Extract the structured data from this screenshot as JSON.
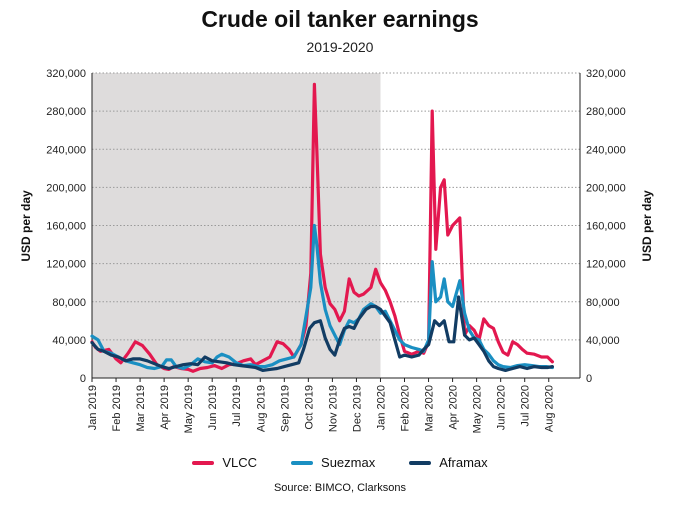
{
  "chart_data": {
    "type": "line",
    "title": "Crude oil tanker earnings",
    "subtitle": "2019-2020",
    "ylabel_left": "USD per day",
    "ylabel_right": "USD per day",
    "source": "Source: BIMCO, Clarksons",
    "ylim": [
      0,
      320000
    ],
    "yticks": [
      0,
      40000,
      80000,
      120000,
      160000,
      200000,
      240000,
      280000,
      320000
    ],
    "ytick_labels": [
      "0",
      "40,000",
      "80,000",
      "120,000",
      "160,000",
      "200,000",
      "240,000",
      "280,000",
      "320,000"
    ],
    "xlim": [
      0,
      20.3
    ],
    "shaded_range": [
      0,
      12
    ],
    "grid": true,
    "legend_position": "bottom",
    "month_labels": [
      "Jan 2019",
      "Feb 2019",
      "Mar 2019",
      "Apr 2019",
      "May 2019",
      "Jun 2019",
      "Jul 2019",
      "Aug 2019",
      "Sep 2019",
      "Oct 2019",
      "Nov 2019",
      "Dec 2019",
      "Jan 2020",
      "Feb 2020",
      "Mar 2020",
      "Apr 2020",
      "May 2020",
      "Jun 2020",
      "Jul 2020",
      "Aug 2020"
    ],
    "series": [
      {
        "name": "VLCC",
        "color": "#e3184f",
        "points": [
          [
            0,
            38000
          ],
          [
            0.15,
            32000
          ],
          [
            0.35,
            28000
          ],
          [
            0.7,
            30000
          ],
          [
            1,
            20000
          ],
          [
            1.2,
            16000
          ],
          [
            1.5,
            26000
          ],
          [
            1.8,
            38000
          ],
          [
            2.1,
            34000
          ],
          [
            2.4,
            25000
          ],
          [
            2.7,
            14000
          ],
          [
            3,
            10000
          ],
          [
            3.2,
            9000
          ],
          [
            3.4,
            12000
          ],
          [
            3.7,
            10000
          ],
          [
            4,
            9000
          ],
          [
            4.2,
            7000
          ],
          [
            4.5,
            10000
          ],
          [
            4.8,
            11000
          ],
          [
            5.1,
            13000
          ],
          [
            5.4,
            10000
          ],
          [
            5.7,
            14000
          ],
          [
            6,
            15000
          ],
          [
            6.3,
            18000
          ],
          [
            6.6,
            20000
          ],
          [
            6.8,
            14000
          ],
          [
            7.1,
            18000
          ],
          [
            7.4,
            22000
          ],
          [
            7.7,
            38000
          ],
          [
            7.95,
            36000
          ],
          [
            8.2,
            30000
          ],
          [
            8.4,
            22000
          ],
          [
            8.7,
            35000
          ],
          [
            8.9,
            55000
          ],
          [
            9.1,
            110000
          ],
          [
            9.25,
            308000
          ],
          [
            9.35,
            240000
          ],
          [
            9.5,
            130000
          ],
          [
            9.7,
            95000
          ],
          [
            9.9,
            78000
          ],
          [
            10.1,
            72000
          ],
          [
            10.3,
            60000
          ],
          [
            10.5,
            70000
          ],
          [
            10.7,
            104000
          ],
          [
            10.9,
            90000
          ],
          [
            11.1,
            86000
          ],
          [
            11.3,
            88000
          ],
          [
            11.6,
            95000
          ],
          [
            11.8,
            114000
          ],
          [
            12,
            100000
          ],
          [
            12.2,
            92000
          ],
          [
            12.4,
            80000
          ],
          [
            12.6,
            65000
          ],
          [
            12.8,
            45000
          ],
          [
            13,
            28000
          ],
          [
            13.3,
            25000
          ],
          [
            13.6,
            28000
          ],
          [
            13.8,
            26000
          ],
          [
            14,
            38000
          ],
          [
            14.15,
            280000
          ],
          [
            14.3,
            135000
          ],
          [
            14.5,
            200000
          ],
          [
            14.65,
            208000
          ],
          [
            14.8,
            150000
          ],
          [
            15,
            160000
          ],
          [
            15.3,
            168000
          ],
          [
            15.5,
            45000
          ],
          [
            15.7,
            55000
          ],
          [
            15.9,
            50000
          ],
          [
            16.1,
            40000
          ],
          [
            16.3,
            62000
          ],
          [
            16.5,
            55000
          ],
          [
            16.7,
            52000
          ],
          [
            16.9,
            38000
          ],
          [
            17.1,
            27000
          ],
          [
            17.3,
            24000
          ],
          [
            17.5,
            38000
          ],
          [
            17.7,
            35000
          ],
          [
            17.9,
            30000
          ],
          [
            18.1,
            26000
          ],
          [
            18.4,
            25000
          ],
          [
            18.7,
            22000
          ],
          [
            18.95,
            22000
          ],
          [
            19.15,
            17000
          ]
        ]
      },
      {
        "name": "Suezmax",
        "color": "#1a8fc2",
        "points": [
          [
            0,
            44000
          ],
          [
            0.25,
            40000
          ],
          [
            0.5,
            28000
          ],
          [
            0.8,
            26000
          ],
          [
            1.1,
            22000
          ],
          [
            1.4,
            18000
          ],
          [
            1.7,
            16000
          ],
          [
            2,
            14000
          ],
          [
            2.3,
            11000
          ],
          [
            2.6,
            10000
          ],
          [
            2.9,
            12000
          ],
          [
            3.1,
            19000
          ],
          [
            3.3,
            19000
          ],
          [
            3.5,
            12000
          ],
          [
            3.8,
            10000
          ],
          [
            4.1,
            14000
          ],
          [
            4.4,
            20000
          ],
          [
            4.7,
            17000
          ],
          [
            5,
            16000
          ],
          [
            5.2,
            22000
          ],
          [
            5.4,
            25000
          ],
          [
            5.7,
            22000
          ],
          [
            6,
            16000
          ],
          [
            6.3,
            13000
          ],
          [
            6.6,
            14000
          ],
          [
            6.9,
            12000
          ],
          [
            7.2,
            12000
          ],
          [
            7.5,
            14000
          ],
          [
            7.8,
            18000
          ],
          [
            8.1,
            20000
          ],
          [
            8.4,
            22000
          ],
          [
            8.7,
            35000
          ],
          [
            8.9,
            65000
          ],
          [
            9.1,
            95000
          ],
          [
            9.25,
            160000
          ],
          [
            9.35,
            140000
          ],
          [
            9.5,
            100000
          ],
          [
            9.7,
            72000
          ],
          [
            9.9,
            55000
          ],
          [
            10.1,
            45000
          ],
          [
            10.3,
            35000
          ],
          [
            10.5,
            50000
          ],
          [
            10.7,
            60000
          ],
          [
            10.9,
            58000
          ],
          [
            11.1,
            62000
          ],
          [
            11.3,
            72000
          ],
          [
            11.6,
            78000
          ],
          [
            11.8,
            75000
          ],
          [
            12,
            68000
          ],
          [
            12.2,
            70000
          ],
          [
            12.4,
            60000
          ],
          [
            12.6,
            50000
          ],
          [
            12.8,
            40000
          ],
          [
            13,
            35000
          ],
          [
            13.3,
            32000
          ],
          [
            13.6,
            30000
          ],
          [
            13.8,
            28000
          ],
          [
            14,
            40000
          ],
          [
            14.15,
            122000
          ],
          [
            14.3,
            80000
          ],
          [
            14.5,
            85000
          ],
          [
            14.65,
            104000
          ],
          [
            14.8,
            80000
          ],
          [
            15,
            75000
          ],
          [
            15.3,
            102000
          ],
          [
            15.5,
            68000
          ],
          [
            15.7,
            50000
          ],
          [
            15.9,
            42000
          ],
          [
            16.1,
            40000
          ],
          [
            16.3,
            30000
          ],
          [
            16.5,
            25000
          ],
          [
            16.7,
            18000
          ],
          [
            16.9,
            14000
          ],
          [
            17.1,
            12000
          ],
          [
            17.4,
            11000
          ],
          [
            17.7,
            13000
          ],
          [
            18,
            14000
          ],
          [
            18.3,
            13000
          ],
          [
            18.6,
            12000
          ],
          [
            18.9,
            12000
          ],
          [
            19.15,
            11000
          ]
        ]
      },
      {
        "name": "Aframax",
        "color": "#123c63",
        "points": [
          [
            0,
            37000
          ],
          [
            0.25,
            30000
          ],
          [
            0.5,
            28000
          ],
          [
            0.8,
            24000
          ],
          [
            1.1,
            22000
          ],
          [
            1.4,
            18000
          ],
          [
            1.7,
            20000
          ],
          [
            2,
            20000
          ],
          [
            2.3,
            18000
          ],
          [
            2.6,
            15000
          ],
          [
            2.9,
            12000
          ],
          [
            3.2,
            10000
          ],
          [
            3.5,
            12000
          ],
          [
            3.8,
            14000
          ],
          [
            4.1,
            15000
          ],
          [
            4.4,
            14000
          ],
          [
            4.7,
            22000
          ],
          [
            5,
            18000
          ],
          [
            5.3,
            17000
          ],
          [
            5.6,
            16000
          ],
          [
            5.9,
            14000
          ],
          [
            6.2,
            13000
          ],
          [
            6.5,
            12000
          ],
          [
            6.8,
            11000
          ],
          [
            7.1,
            8000
          ],
          [
            7.4,
            9000
          ],
          [
            7.7,
            10000
          ],
          [
            8,
            12000
          ],
          [
            8.3,
            14000
          ],
          [
            8.6,
            16000
          ],
          [
            8.8,
            30000
          ],
          [
            9.05,
            52000
          ],
          [
            9.25,
            58000
          ],
          [
            9.5,
            60000
          ],
          [
            9.7,
            42000
          ],
          [
            9.9,
            30000
          ],
          [
            10.1,
            24000
          ],
          [
            10.3,
            40000
          ],
          [
            10.5,
            52000
          ],
          [
            10.7,
            54000
          ],
          [
            10.9,
            52000
          ],
          [
            11.1,
            62000
          ],
          [
            11.4,
            72000
          ],
          [
            11.6,
            75000
          ],
          [
            11.8,
            75000
          ],
          [
            12,
            72000
          ],
          [
            12.2,
            65000
          ],
          [
            12.4,
            58000
          ],
          [
            12.6,
            40000
          ],
          [
            12.8,
            22000
          ],
          [
            13,
            24000
          ],
          [
            13.3,
            22000
          ],
          [
            13.6,
            24000
          ],
          [
            13.8,
            30000
          ],
          [
            14,
            35000
          ],
          [
            14.25,
            60000
          ],
          [
            14.45,
            55000
          ],
          [
            14.65,
            60000
          ],
          [
            14.85,
            38000
          ],
          [
            15.05,
            38000
          ],
          [
            15.25,
            85000
          ],
          [
            15.5,
            45000
          ],
          [
            15.7,
            40000
          ],
          [
            15.9,
            42000
          ],
          [
            16.1,
            35000
          ],
          [
            16.3,
            28000
          ],
          [
            16.5,
            18000
          ],
          [
            16.7,
            12000
          ],
          [
            16.9,
            10000
          ],
          [
            17.2,
            8000
          ],
          [
            17.5,
            10000
          ],
          [
            17.8,
            12000
          ],
          [
            18.1,
            10000
          ],
          [
            18.4,
            12000
          ],
          [
            18.7,
            11000
          ],
          [
            18.95,
            11000
          ],
          [
            19.15,
            12000
          ]
        ]
      }
    ]
  }
}
